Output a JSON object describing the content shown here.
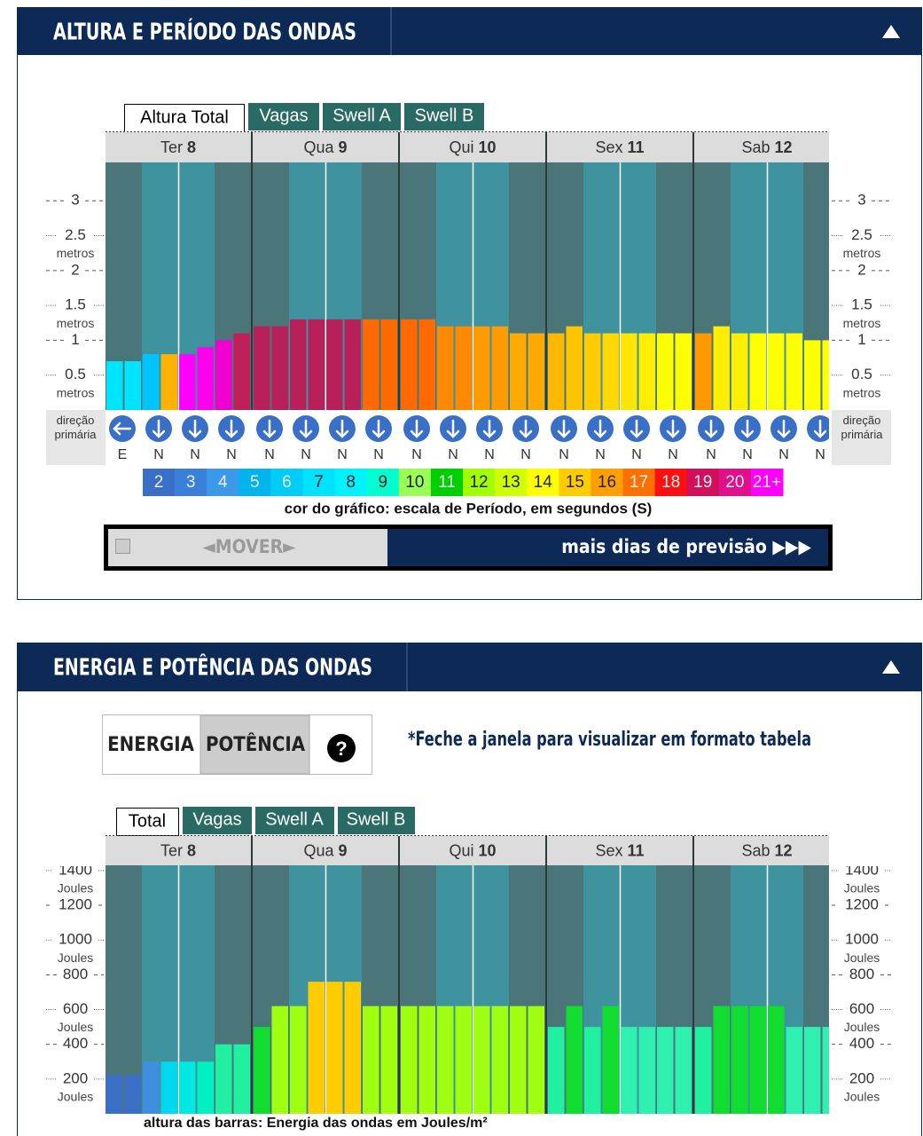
{
  "panels": [
    {
      "title": "ALTURA E PERÍODO DAS ONDAS",
      "tabs": [
        "Altura Total",
        "Vagas",
        "Swell A",
        "Swell B"
      ],
      "mover": "◄MOVER►",
      "more_days": "mais dias de previsão ▶▶▶"
    },
    {
      "title": "ENERGIA E POTÊNCIA DAS ONDAS",
      "toggle": [
        "ENERGIA",
        "POTÊNCIA"
      ],
      "help": "?",
      "note": "*Feche a janela para visualizar em formato tabela",
      "tabs": [
        "Total",
        "Vagas",
        "Swell A",
        "Swell B"
      ]
    }
  ],
  "chart_data": [
    {
      "type": "bar",
      "days": [
        {
          "weekday": "Ter",
          "day": 8
        },
        {
          "weekday": "Qua",
          "day": 9
        },
        {
          "weekday": "Qui",
          "day": 10
        },
        {
          "weekday": "Sex",
          "day": 11
        },
        {
          "weekday": "Sab",
          "day": 12
        }
      ],
      "values": [
        0.7,
        0.7,
        0.8,
        0.8,
        0.8,
        0.9,
        1.0,
        1.1,
        1.2,
        1.2,
        1.3,
        1.3,
        1.3,
        1.3,
        1.3,
        1.3,
        1.3,
        1.3,
        1.2,
        1.2,
        1.2,
        1.2,
        1.1,
        1.1,
        1.1,
        1.2,
        1.1,
        1.1,
        1.1,
        1.1,
        1.1,
        1.1,
        1.1,
        1.2,
        1.1,
        1.1,
        1.1,
        1.1,
        1.0,
        1.0
      ],
      "colors": [
        "#00e5ff",
        "#00e5ff",
        "#00c4ff",
        "#ffb300",
        "#ff00ff",
        "#ff00ee",
        "#f000d0",
        "#c0205a",
        "#b8205a",
        "#b8205a",
        "#b8205a",
        "#b8205a",
        "#b8205a",
        "#b8205a",
        "#ff6a00",
        "#ff6a00",
        "#ff6a00",
        "#ff6a00",
        "#ff8a00",
        "#ff8a00",
        "#ff9a00",
        "#ff9a00",
        "#ffaa00",
        "#ffaa00",
        "#ffb800",
        "#ffc400",
        "#ffcc00",
        "#ffd800",
        "#ffe600",
        "#ffee00",
        "#ffff00",
        "#ffff00",
        "#ff9900",
        "#ffee00",
        "#ffee00",
        "#ffff00",
        "#ffff00",
        "#ffff00",
        "#ffff00",
        "#ffff00"
      ],
      "ylim": [
        0,
        3.55
      ],
      "yticks": [
        0.5,
        1,
        1.5,
        2,
        2.5,
        3
      ],
      "unit_label": "metros",
      "direction_label": "direção primária",
      "directions": [
        {
          "label": "E",
          "degrees": 90
        },
        {
          "label": "N",
          "degrees": 0
        },
        {
          "label": "N",
          "degrees": 0
        },
        {
          "label": "N",
          "degrees": 0
        },
        {
          "label": "N",
          "degrees": 0
        },
        {
          "label": "N",
          "degrees": 0
        },
        {
          "label": "N",
          "degrees": 0
        },
        {
          "label": "N",
          "degrees": 0
        },
        {
          "label": "N",
          "degrees": 0
        },
        {
          "label": "N",
          "degrees": 0
        },
        {
          "label": "N",
          "degrees": 0
        },
        {
          "label": "N",
          "degrees": 0
        },
        {
          "label": "N",
          "degrees": 0
        },
        {
          "label": "N",
          "degrees": 0
        },
        {
          "label": "N",
          "degrees": 0
        },
        {
          "label": "N",
          "degrees": 0
        },
        {
          "label": "N",
          "degrees": 0
        },
        {
          "label": "N",
          "degrees": 0
        },
        {
          "label": "N",
          "degrees": 0
        },
        {
          "label": "N",
          "degrees": 0
        }
      ],
      "period_scale": [
        {
          "label": "2",
          "color": "#3a6fc8"
        },
        {
          "label": "3",
          "color": "#3a7fd8"
        },
        {
          "label": "4",
          "color": "#3a9ae8"
        },
        {
          "label": "5",
          "color": "#00b4ee"
        },
        {
          "label": "6",
          "color": "#00ccf6"
        },
        {
          "label": "7",
          "color": "#00e2ff"
        },
        {
          "label": "8",
          "color": "#00f2ff"
        },
        {
          "label": "9",
          "color": "#00ffd0"
        },
        {
          "label": "10",
          "color": "#99ff55"
        },
        {
          "label": "11",
          "color": "#00d000"
        },
        {
          "label": "12",
          "color": "#a0ff00"
        },
        {
          "label": "13",
          "color": "#d0ff00"
        },
        {
          "label": "14",
          "color": "#ffff00"
        },
        {
          "label": "15",
          "color": "#ffcc00"
        },
        {
          "label": "16",
          "color": "#ffa000"
        },
        {
          "label": "17",
          "color": "#ff7000"
        },
        {
          "label": "18",
          "color": "#ff1010"
        },
        {
          "label": "19",
          "color": "#d0105a"
        },
        {
          "label": "20",
          "color": "#e0108a"
        },
        {
          "label": "21+",
          "color": "#ff00ff"
        }
      ],
      "caption": "cor do gráfico: escala de Período, em segundos (S)"
    },
    {
      "type": "bar",
      "days": [
        {
          "weekday": "Ter",
          "day": 8
        },
        {
          "weekday": "Qua",
          "day": 9
        },
        {
          "weekday": "Qui",
          "day": 10
        },
        {
          "weekday": "Sex",
          "day": 11
        },
        {
          "weekday": "Sab",
          "day": 12
        }
      ],
      "values": [
        225,
        225,
        300,
        300,
        300,
        300,
        400,
        400,
        500,
        620,
        620,
        760,
        760,
        760,
        620,
        620,
        620,
        620,
        620,
        620,
        620,
        620,
        620,
        620,
        500,
        620,
        500,
        620,
        500,
        500,
        500,
        500,
        500,
        620,
        620,
        620,
        620,
        500,
        500,
        500
      ],
      "colors": [
        "#3a6fc8",
        "#3a6fc8",
        "#3f8fe0",
        "#00d8f0",
        "#00e8e0",
        "#00f0c0",
        "#20f0a0",
        "#20f0a0",
        "#10dd30",
        "#a0ff10",
        "#a0ff10",
        "#ffcc00",
        "#ffcc00",
        "#ffcc00",
        "#a0ff10",
        "#a0ff10",
        "#a0ff10",
        "#a0ff10",
        "#a0ff10",
        "#a0ff10",
        "#a0ff10",
        "#a0ff10",
        "#a0ff10",
        "#a0ff10",
        "#20f0a0",
        "#10dd30",
        "#20f0a0",
        "#10dd30",
        "#30f0b0",
        "#30f0b0",
        "#30f0b0",
        "#30f0b0",
        "#20f0a0",
        "#10dd30",
        "#10dd30",
        "#10dd30",
        "#10dd30",
        "#30f0b0",
        "#30f0b0",
        "#30f0b0"
      ],
      "ylim": [
        0,
        1430
      ],
      "yticks": [
        200,
        400,
        600,
        800,
        1000,
        1200,
        1400
      ],
      "unit_label": "Joules",
      "caption": "altura das barras: Energia das ondas em Joules/m²"
    }
  ]
}
